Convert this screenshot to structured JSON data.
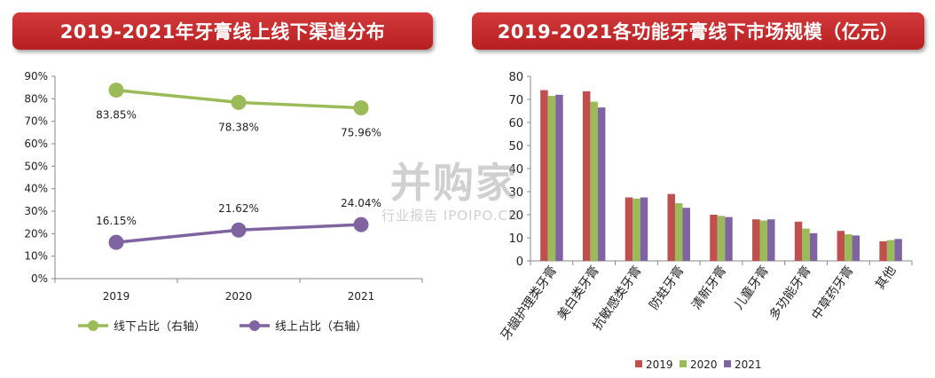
{
  "titles": {
    "left": "2019-2021年牙膏线上线下渠道分布",
    "right": "2019-2021各功能牙膏线下市场规模（亿元）"
  },
  "watermark": {
    "main": "并购家",
    "sub": "行业报告 IPOIPO.CN"
  },
  "colors": {
    "banner": "#c0282b",
    "offline": "#9bbb59",
    "online": "#8064a2",
    "y2019": "#c0504d",
    "y2020": "#9bbb59",
    "y2021": "#8064a2"
  },
  "chart_data": [
    {
      "type": "line",
      "title": "2019-2021年牙膏线上线下渠道分布",
      "x": [
        "2019",
        "2020",
        "2021"
      ],
      "ylim": [
        0,
        90
      ],
      "yticks": [
        "0%",
        "10%",
        "20%",
        "30%",
        "40%",
        "50%",
        "60%",
        "70%",
        "80%",
        "90%"
      ],
      "series": [
        {
          "name": "线下占比（右轴）",
          "values": [
            83.85,
            78.38,
            75.96
          ],
          "labels": [
            "83.85%",
            "78.38%",
            "75.96%"
          ],
          "color": "#9bbb59"
        },
        {
          "name": "线上占比（右轴）",
          "values": [
            16.15,
            21.62,
            24.04
          ],
          "labels": [
            "16.15%",
            "21.62%",
            "24.04%"
          ],
          "color": "#8064a2"
        }
      ],
      "legend": "bottom",
      "grid": false
    },
    {
      "type": "bar",
      "title": "2019-2021各功能牙膏线下市场规模（亿元）",
      "categories": [
        "牙龈护理类牙膏",
        "美白类牙膏",
        "抗敏感类牙膏",
        "防蛀牙膏",
        "清新牙膏",
        "儿童牙膏",
        "多功能牙膏",
        "中草药牙膏",
        "其他"
      ],
      "ylim": [
        0,
        80
      ],
      "yticks": [
        "0",
        "10",
        "20",
        "30",
        "40",
        "50",
        "60",
        "70",
        "80"
      ],
      "series": [
        {
          "name": "2019",
          "values": [
            74,
            73.5,
            27.5,
            29,
            20,
            18,
            17,
            13,
            8.5
          ],
          "color": "#c0504d"
        },
        {
          "name": "2020",
          "values": [
            71.5,
            69,
            27,
            25,
            19.5,
            17.5,
            14,
            11.5,
            9
          ],
          "color": "#9bbb59"
        },
        {
          "name": "2021",
          "values": [
            72,
            66.5,
            27.5,
            23,
            19,
            18,
            12,
            11,
            9.5
          ],
          "color": "#8064a2"
        }
      ],
      "legend": "bottom",
      "grid": false
    }
  ]
}
